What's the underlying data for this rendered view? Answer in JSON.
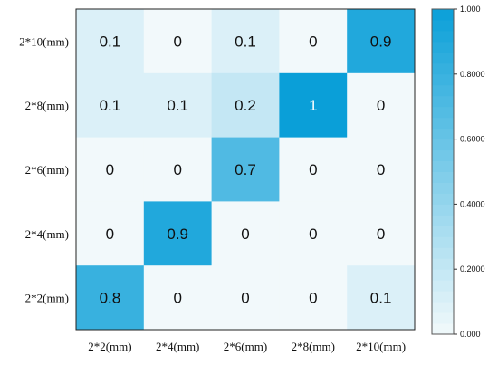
{
  "chart_data": {
    "type": "heatmap",
    "title": "",
    "xlabel": "",
    "ylabel": "",
    "x_categories": [
      "2*2(mm)",
      "2*4(mm)",
      "2*6(mm)",
      "2*8(mm)",
      "2*10(mm)"
    ],
    "y_categories": [
      "2*10(mm)",
      "2*8(mm)",
      "2*6(mm)",
      "2*4(mm)",
      "2*2(mm)"
    ],
    "values": [
      [
        0.1,
        0,
        0.1,
        0,
        0.9
      ],
      [
        0.1,
        0.1,
        0.2,
        1,
        0
      ],
      [
        0,
        0,
        0.7,
        0,
        0
      ],
      [
        0,
        0.9,
        0,
        0,
        0
      ],
      [
        0.8,
        0,
        0,
        0,
        0.1
      ]
    ],
    "value_labels": [
      [
        "0.1",
        "0",
        "0.1",
        "0",
        "0.9"
      ],
      [
        "0.1",
        "0.1",
        "0.2",
        "1",
        "0"
      ],
      [
        "0",
        "0",
        "0.7",
        "0",
        "0"
      ],
      [
        "0",
        "0.9",
        "0",
        "0",
        "0"
      ],
      [
        "0.8",
        "0",
        "0",
        "0",
        "0.1"
      ]
    ],
    "colorbar": {
      "range": [
        0,
        1
      ],
      "ticks": [
        "0.000",
        "0.2000",
        "0.4000",
        "0.6000",
        "0.8000",
        "1.000"
      ],
      "tick_values": [
        0,
        0.2,
        0.4,
        0.6,
        0.8,
        1.0
      ],
      "color_low": "#f2f9fb",
      "color_high": "#0a9fd8"
    },
    "grid": false,
    "legend_placement": "right"
  }
}
